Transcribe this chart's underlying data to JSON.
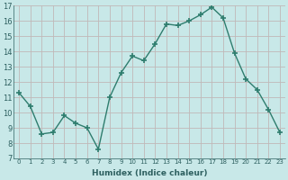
{
  "x": [
    0,
    1,
    2,
    3,
    4,
    5,
    6,
    7,
    8,
    9,
    10,
    11,
    12,
    13,
    14,
    15,
    16,
    17,
    18,
    19,
    20,
    21,
    22,
    23
  ],
  "y": [
    11.3,
    10.4,
    8.6,
    8.7,
    9.8,
    9.3,
    9.0,
    7.6,
    11.0,
    12.6,
    13.7,
    13.4,
    14.5,
    15.8,
    15.7,
    16.0,
    16.4,
    16.9,
    16.2,
    13.9,
    12.2,
    11.5,
    10.2,
    8.7
  ],
  "line_color": "#2e7d6e",
  "marker": "+",
  "marker_size": 4,
  "bg_color": "#c8e8e8",
  "grid_color": "#c0b8b8",
  "xlabel": "Humidex (Indice chaleur)",
  "ylim": [
    7,
    17
  ],
  "xlim": [
    -0.5,
    23.5
  ],
  "yticks": [
    7,
    8,
    9,
    10,
    11,
    12,
    13,
    14,
    15,
    16,
    17
  ],
  "xtick_labels": [
    "0",
    "1",
    "2",
    "3",
    "4",
    "5",
    "6",
    "7",
    "8",
    "9",
    "10",
    "11",
    "12",
    "13",
    "14",
    "15",
    "16",
    "17",
    "18",
    "19",
    "20",
    "21",
    "22",
    "23"
  ]
}
